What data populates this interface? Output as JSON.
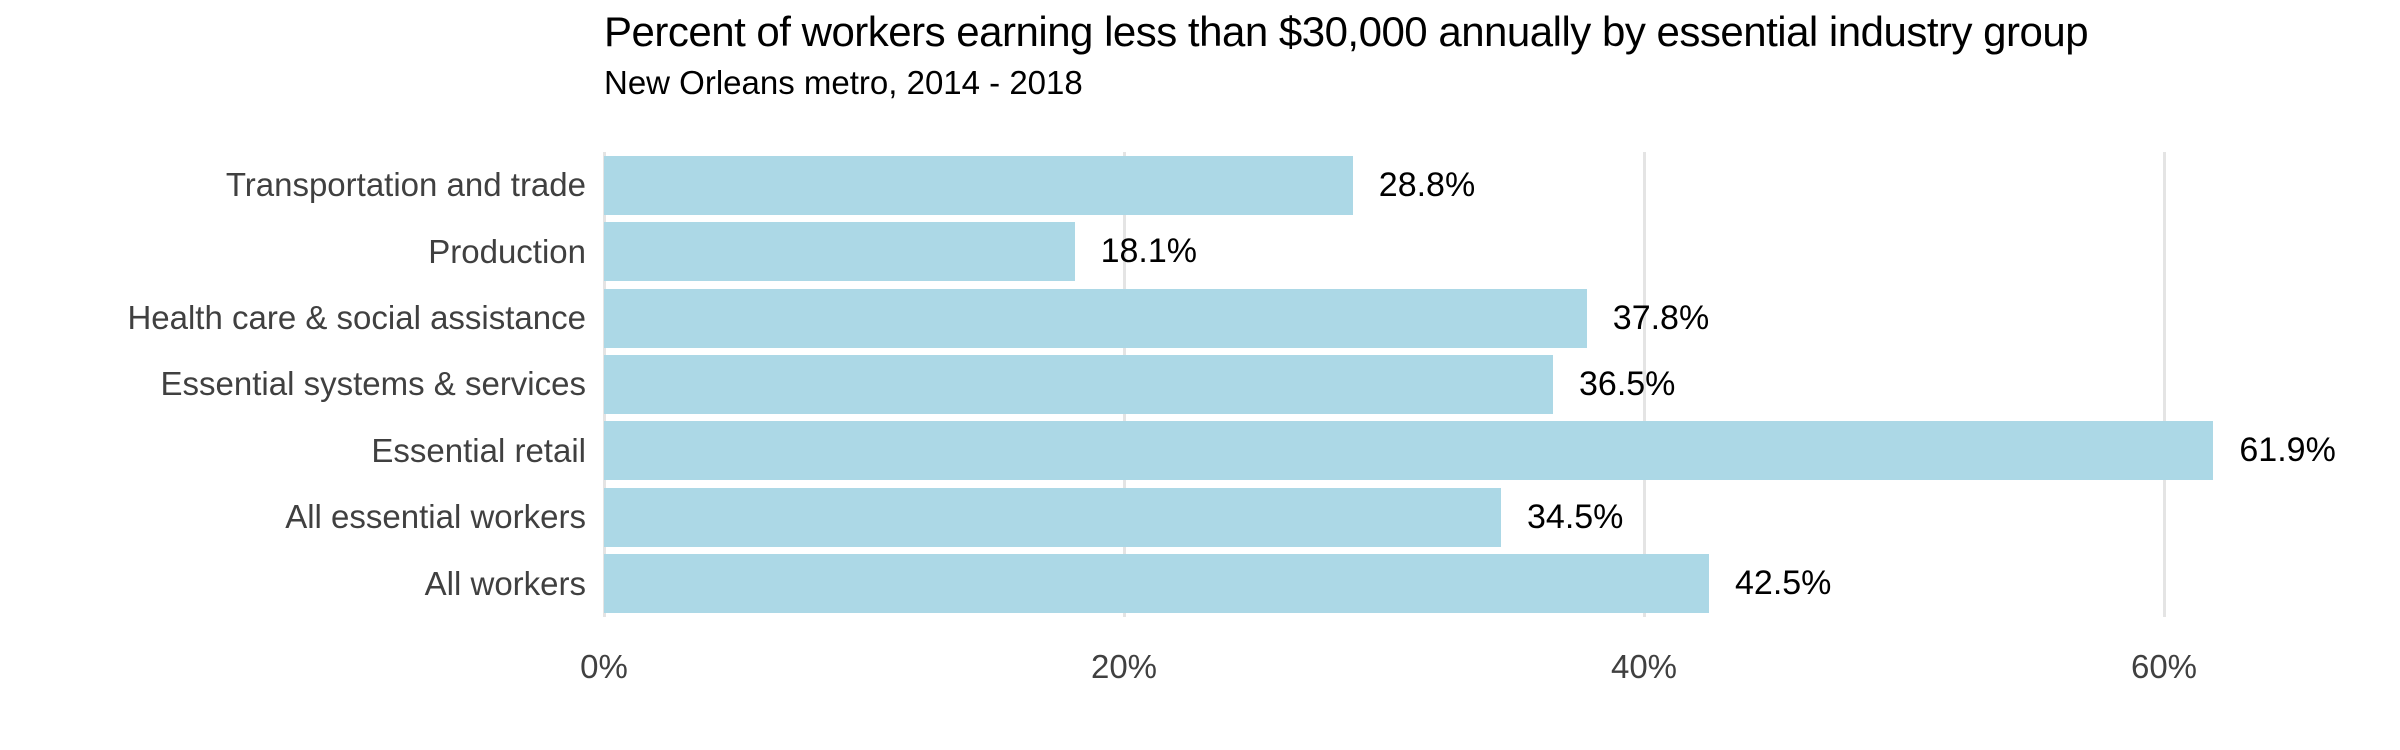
{
  "chart_data": {
    "type": "bar",
    "orientation": "horizontal",
    "title": "Percent of workers earning less than $30,000 annually by essential industry group",
    "subtitle": "New Orleans metro, 2014 - 2018",
    "categories": [
      "Transportation and trade",
      "Production",
      "Health care & social assistance",
      "Essential systems & services",
      "Essential retail",
      "All essential workers",
      "All workers"
    ],
    "values": [
      28.8,
      18.1,
      37.8,
      36.5,
      61.9,
      34.5,
      42.5
    ],
    "value_labels": [
      "28.8%",
      "18.1%",
      "37.8%",
      "36.5%",
      "61.9%",
      "34.5%",
      "42.5%"
    ],
    "xlabel": "",
    "ylabel": "",
    "x_ticks": [
      {
        "value": 0,
        "label": "0%"
      },
      {
        "value": 20,
        "label": "20%"
      },
      {
        "value": 40,
        "label": "40%"
      },
      {
        "value": 60,
        "label": "60%"
      }
    ],
    "xlim": [
      0,
      68
    ],
    "grid": "vertical-gridlines-at-ticks",
    "legend": "none",
    "bar_color": "#ACD8E6",
    "gridline_color": "#E4E4E4",
    "category_label_color": "#404040",
    "tick_label_color": "#404040",
    "value_label_color": "#000000",
    "title_color": "#000000",
    "background_color": "#FFFFFF"
  }
}
